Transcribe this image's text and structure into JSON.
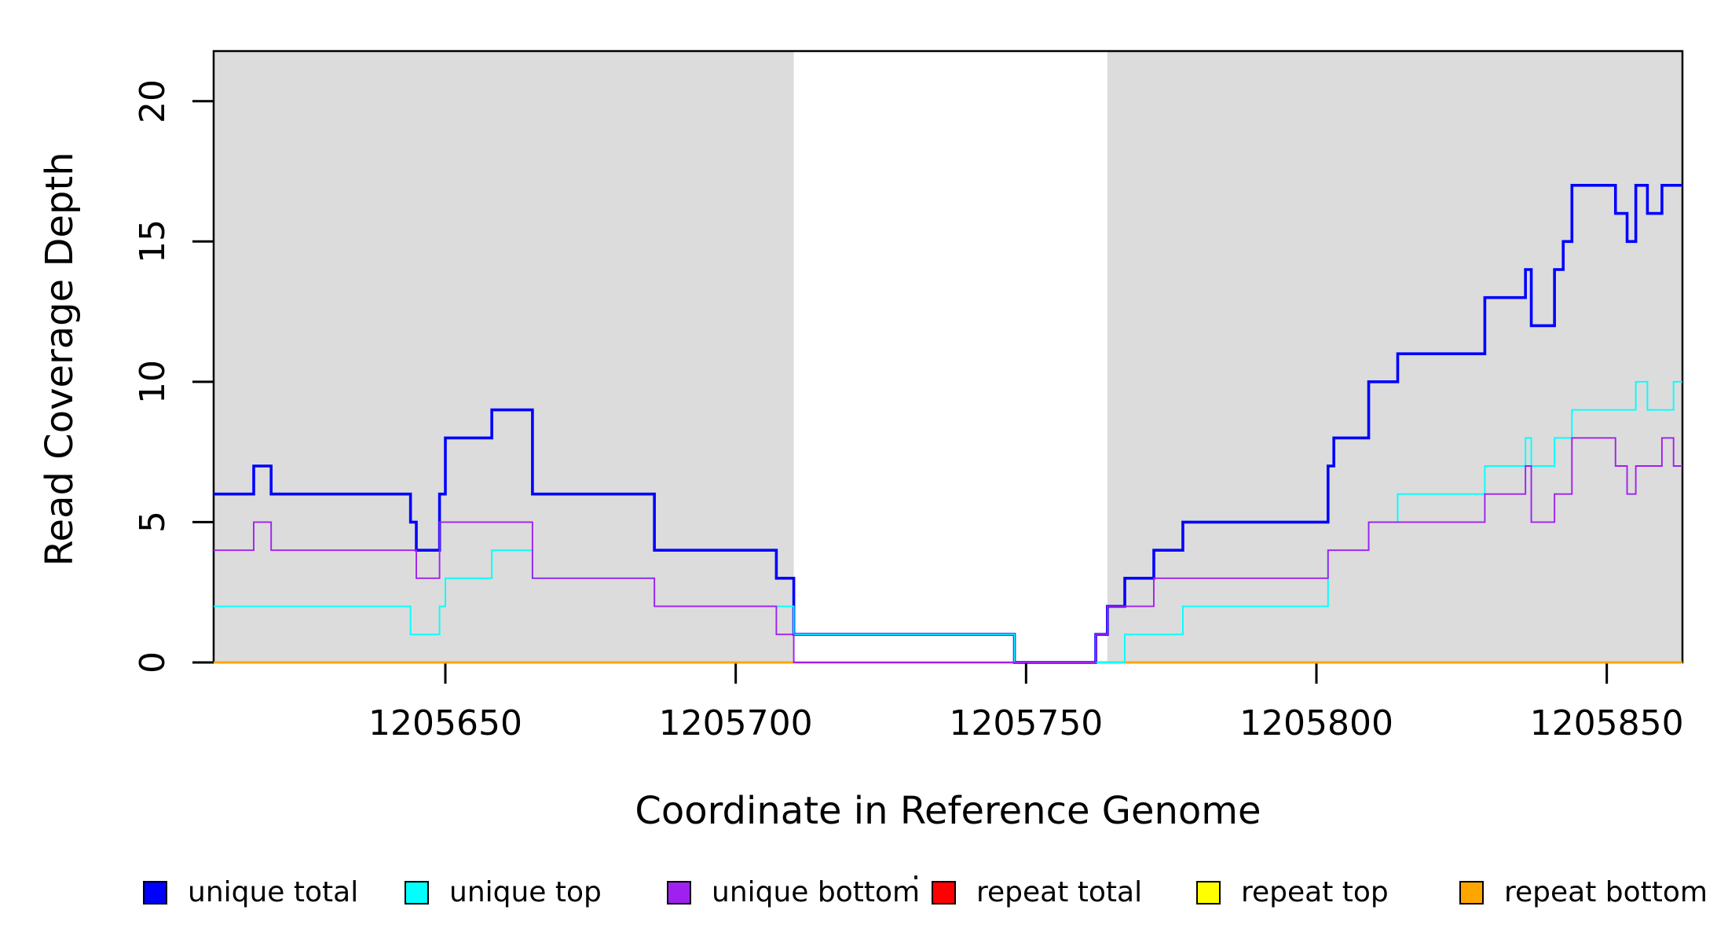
{
  "figure": {
    "xlabel": "Coordinate in Reference Genome",
    "ylabel": "Read Coverage Depth"
  },
  "axes": {
    "x_ticks": [
      {
        "value": 1205650,
        "label": "1205650"
      },
      {
        "value": 1205700,
        "label": "1205700"
      },
      {
        "value": 1205750,
        "label": "1205750"
      },
      {
        "value": 1205800,
        "label": "1205800"
      },
      {
        "value": 1205850,
        "label": "1205850"
      }
    ],
    "y_ticks": [
      {
        "value": 0,
        "label": "0"
      },
      {
        "value": 5,
        "label": "5"
      },
      {
        "value": 10,
        "label": "10"
      },
      {
        "value": 15,
        "label": "15"
      },
      {
        "value": 20,
        "label": "20"
      }
    ]
  },
  "colors": {
    "panel_shade": "#DCDCDC",
    "box": "#000000",
    "unique_total": "#0000FF",
    "unique_top": "#00FFFF",
    "unique_bottom": "#A020F0",
    "repeat_total": "#FF0000",
    "repeat_top": "#FFFF00",
    "repeat_bottom": "#FFA500"
  },
  "legend": {
    "items": [
      {
        "label": "unique total",
        "color": "#0000FF"
      },
      {
        "label": "unique top",
        "color": "#00FFFF"
      },
      {
        "label": "unique bottom",
        "color": "#A020F0"
      },
      {
        "label": "repeat total",
        "color": "#FF0000"
      },
      {
        "label": "repeat top",
        "color": "#FFFF00"
      },
      {
        "label": "repeat bottom",
        "color": "#FFA500"
      }
    ]
  },
  "chart_data": {
    "type": "line",
    "subtype": "step",
    "title": "",
    "xlabel": "Coordinate in Reference Genome",
    "ylabel": "Read Coverage Depth",
    "x_range": [
      1205610.1,
      1205863.0
    ],
    "ylim": [
      0,
      21.8
    ],
    "grid": false,
    "legend_position": "bottom",
    "shaded_regions": [
      {
        "from": 1205610.1,
        "to": 1205710.0
      },
      {
        "from": 1205764.0,
        "to": 1205863.0
      }
    ],
    "series": [
      {
        "name": "repeat total",
        "color": "#FF0000",
        "steps": [
          [
            1205610.1,
            0
          ]
        ]
      },
      {
        "name": "repeat top",
        "color": "#FFFF00",
        "steps": [
          [
            1205610.1,
            0
          ]
        ]
      },
      {
        "name": "repeat bottom",
        "color": "#FFA500",
        "steps": [
          [
            1205610.1,
            0
          ]
        ]
      },
      {
        "name": "unique total",
        "color": "#0000FF",
        "steps": [
          [
            1205610.1,
            6
          ],
          [
            1205617,
            7
          ],
          [
            1205620,
            6
          ],
          [
            1205644,
            5
          ],
          [
            1205645,
            4
          ],
          [
            1205649,
            6
          ],
          [
            1205650,
            8
          ],
          [
            1205658,
            9
          ],
          [
            1205665,
            6
          ],
          [
            1205686,
            4
          ],
          [
            1205707,
            3
          ],
          [
            1205710,
            1
          ],
          [
            1205748,
            0
          ],
          [
            1205762,
            1
          ],
          [
            1205764,
            2
          ],
          [
            1205767,
            3
          ],
          [
            1205772,
            4
          ],
          [
            1205777,
            5
          ],
          [
            1205802,
            7
          ],
          [
            1205803,
            8
          ],
          [
            1205809,
            10
          ],
          [
            1205814,
            11
          ],
          [
            1205829,
            13
          ],
          [
            1205836,
            14
          ],
          [
            1205837,
            12
          ],
          [
            1205841,
            14
          ],
          [
            1205842.5,
            15
          ],
          [
            1205844,
            17
          ],
          [
            1205851.5,
            16
          ],
          [
            1205853.5,
            15
          ],
          [
            1205855,
            17
          ],
          [
            1205857,
            16
          ],
          [
            1205859.5,
            17
          ]
        ]
      },
      {
        "name": "unique top",
        "color": "#00FFFF",
        "steps": [
          [
            1205610.1,
            2
          ],
          [
            1205644,
            1
          ],
          [
            1205649,
            2
          ],
          [
            1205650,
            3
          ],
          [
            1205658,
            4
          ],
          [
            1205665,
            3
          ],
          [
            1205686,
            2
          ],
          [
            1205710,
            1
          ],
          [
            1205748,
            0
          ],
          [
            1205767,
            1
          ],
          [
            1205777,
            2
          ],
          [
            1205802,
            4
          ],
          [
            1205809,
            5
          ],
          [
            1205814,
            6
          ],
          [
            1205829,
            7
          ],
          [
            1205836,
            8
          ],
          [
            1205837,
            7
          ],
          [
            1205841,
            8
          ],
          [
            1205844,
            9
          ],
          [
            1205855,
            10
          ],
          [
            1205857,
            9
          ],
          [
            1205861.5,
            10
          ]
        ]
      },
      {
        "name": "unique bottom",
        "color": "#A020F0",
        "steps": [
          [
            1205610.1,
            4
          ],
          [
            1205617,
            5
          ],
          [
            1205620,
            4
          ],
          [
            1205645,
            3
          ],
          [
            1205649,
            5
          ],
          [
            1205665,
            3
          ],
          [
            1205686,
            2
          ],
          [
            1205707,
            1
          ],
          [
            1205710,
            0
          ],
          [
            1205762,
            1
          ],
          [
            1205764,
            2
          ],
          [
            1205772,
            3
          ],
          [
            1205802,
            4
          ],
          [
            1205809,
            5
          ],
          [
            1205829,
            6
          ],
          [
            1205836,
            7
          ],
          [
            1205837,
            5
          ],
          [
            1205841,
            6
          ],
          [
            1205844,
            8
          ],
          [
            1205851.5,
            7
          ],
          [
            1205853.5,
            6
          ],
          [
            1205855,
            7
          ],
          [
            1205859.5,
            8
          ],
          [
            1205861.5,
            7
          ]
        ]
      }
    ]
  }
}
